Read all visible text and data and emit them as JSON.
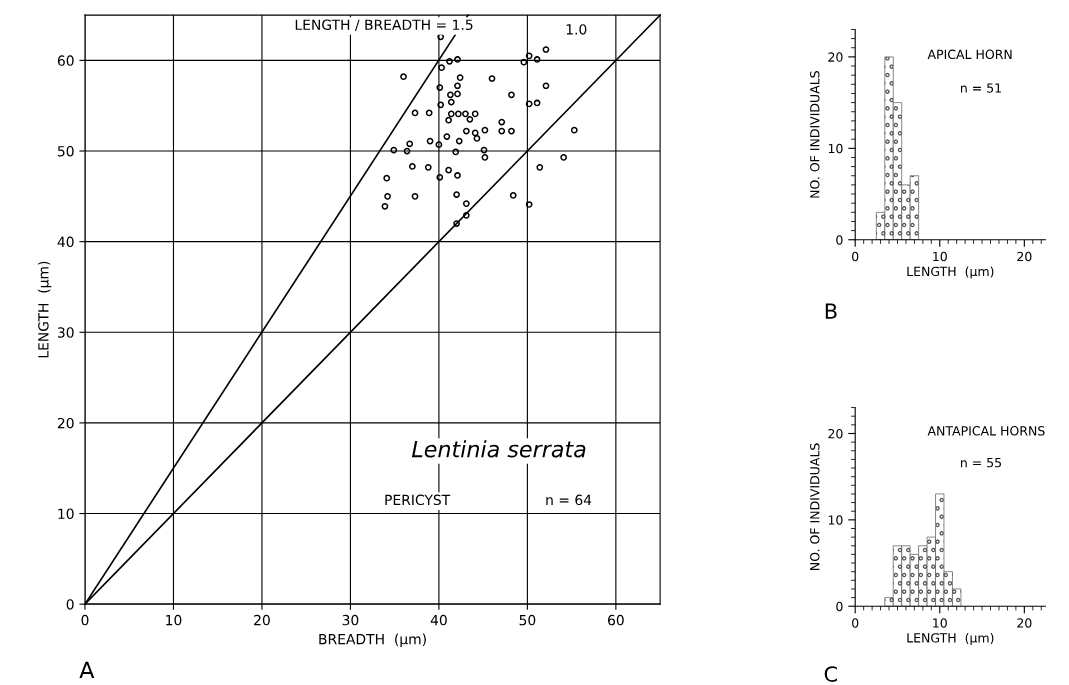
{
  "chart_data": [
    {
      "type": "scatter",
      "xlabel": "BREADTH  (µm)",
      "ylabel": "LENGTH  (µm)",
      "xlim": [
        0,
        65
      ],
      "ylim": [
        0,
        65
      ],
      "xticks": [
        0,
        10,
        20,
        30,
        40,
        50,
        60
      ],
      "yticks": [
        0,
        10,
        20,
        30,
        40,
        50,
        60
      ],
      "grid": true,
      "marker": "circle",
      "x": [
        40.2,
        41.2,
        42.1,
        40.3,
        36.0,
        42.4,
        46.0,
        42.1,
        40.1,
        41.3,
        42.1,
        41.4,
        40.2,
        48.2,
        37.3,
        38.9,
        41.4,
        42.2,
        43.0,
        44.1,
        43.5,
        41.1,
        47.1,
        43.1,
        44.1,
        44.3,
        45.2,
        47.1,
        48.2,
        40.9,
        39.0,
        40.0,
        36.7,
        42.3,
        34.9,
        36.4,
        41.9,
        45.1,
        45.2,
        37.0,
        38.8,
        41.1,
        40.1,
        42.1,
        34.1,
        34.2,
        37.3,
        42.0,
        33.9,
        43.1,
        43.1,
        42.0,
        48.4,
        50.2,
        51.4,
        54.1,
        55.3,
        50.2,
        51.1,
        52.1,
        49.6,
        50.2,
        51.1,
        52.1
      ],
      "series": [
        {
          "type": "scatter",
          "color": "#000000",
          "values": [
            62.6,
            59.9,
            60.1,
            59.2,
            58.2,
            58.1,
            58.0,
            57.2,
            57.0,
            56.2,
            56.3,
            55.4,
            55.1,
            56.2,
            54.2,
            54.2,
            54.1,
            54.1,
            54.1,
            54.1,
            53.5,
            53.4,
            53.2,
            52.2,
            52.0,
            51.4,
            52.3,
            52.2,
            52.2,
            51.6,
            51.1,
            50.7,
            50.8,
            51.1,
            50.1,
            50.0,
            49.9,
            50.1,
            49.3,
            48.3,
            48.2,
            47.9,
            47.1,
            47.3,
            47.0,
            45.0,
            45.0,
            45.2,
            43.9,
            44.2,
            42.9,
            42.0,
            45.1,
            44.1,
            48.2,
            49.3,
            52.3,
            55.2,
            55.3,
            57.2,
            59.8,
            60.5,
            60.1,
            61.2
          ]
        },
        {
          "type": "line",
          "color": "#000000",
          "marker": "none",
          "x": [
            0,
            43.3
          ],
          "values": [
            0,
            65
          ]
        },
        {
          "type": "line",
          "color": "#000000",
          "marker": "none",
          "x": [
            0,
            65
          ],
          "values": [
            0,
            65
          ]
        }
      ],
      "annotations": [
        {
          "text": "LENGTH / BREADTH = 1.5",
          "x": 43.3,
          "y": 65
        },
        "1.0",
        "Lentinia serrata",
        "PERICYST",
        "n = 64",
        "A"
      ]
    },
    {
      "type": "histogram",
      "title": "APICAL HORN",
      "xlabel": "LENGTH  (µm)",
      "ylabel": "NO. OF INDIVIDUALS",
      "xlim": [
        0,
        22.5
      ],
      "ylim": [
        0,
        23
      ],
      "xticks": [
        0,
        10,
        20
      ],
      "yticks": [
        0,
        10,
        20
      ],
      "color": "#555555",
      "bins": [
        2.5,
        3.5,
        4.5,
        5.5,
        6.5,
        7.5
      ],
      "values": [
        3,
        20,
        15,
        6,
        7
      ],
      "annotations": [
        "n = 51",
        "B"
      ]
    },
    {
      "type": "histogram",
      "title": "ANTAPICAL HORNS",
      "xlabel": "LENGTH  (µm)",
      "ylabel": "NO. OF INDIVIDUALS",
      "xlim": [
        0,
        22.5
      ],
      "ylim": [
        0,
        23
      ],
      "xticks": [
        0,
        10,
        20
      ],
      "yticks": [
        0,
        10,
        20
      ],
      "color": "#555555",
      "bins": [
        3.5,
        4.5,
        5.5,
        6.5,
        7.5,
        8.5,
        9.5,
        10.5,
        11.5,
        12.5
      ],
      "values": [
        1,
        7,
        7,
        6,
        7,
        8,
        13,
        4,
        2
      ],
      "annotations": [
        "n = 55",
        "C"
      ]
    }
  ]
}
